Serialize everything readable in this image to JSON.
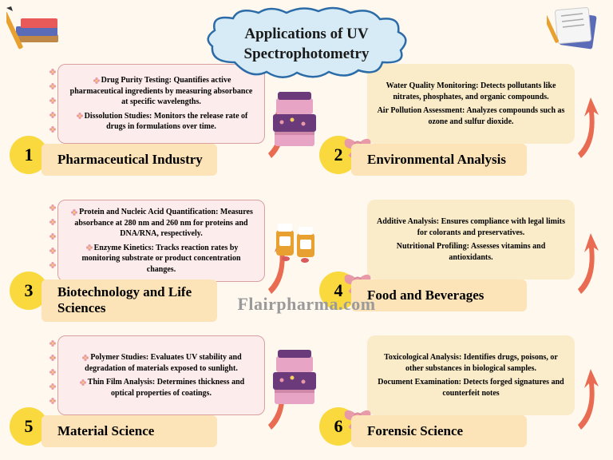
{
  "colors": {
    "background": "#fef8ee",
    "cloud_fill": "#d6ebf5",
    "cloud_stroke": "#2b6ca8",
    "circle_fill": "#f9d93e",
    "label_fill": "#fde4b8",
    "desc_fill_left": "#fdecec",
    "desc_stroke_left": "#d9a0a0",
    "desc_fill_right": "#faecc9",
    "arrow_fill": "#e96b52",
    "bow_fill": "#e99aa8",
    "watermark_color": "#9a9a9a",
    "text_dark": "#1a1a1a",
    "flower_pink": "#e99aa8",
    "flower_center": "#f5d060",
    "book_purple": "#6b3a7a",
    "book_pink": "#e8a4c4",
    "paper_blue": "#5a6bb8",
    "paper_white": "#f5f5f5",
    "pencil": "#e8a030",
    "pill_bottle": "#e8a030",
    "pill_cap": "#ffffff"
  },
  "title": "Applications of UV Spectrophotometry",
  "watermark": "Flairpharma.com",
  "sections": [
    {
      "num": "1",
      "label": "Pharmaceutical Industry",
      "side": "left",
      "desc": [
        "Drug Purity Testing: Quantifies active pharmaceutical ingredients by measuring absorbance at specific wavelengths.",
        "Dissolution Studies: Monitors the release rate of drugs in formulations over time."
      ]
    },
    {
      "num": "2",
      "label": "Environmental Analysis",
      "side": "right",
      "desc": [
        "Water Quality Monitoring: Detects pollutants like nitrates, phosphates, and organic compounds.",
        "Air Pollution Assessment: Analyzes compounds such as ozone and sulfur dioxide."
      ]
    },
    {
      "num": "3",
      "label": "Biotechnology and Life Sciences",
      "side": "left",
      "desc": [
        "Protein and Nucleic Acid Quantification: Measures absorbance at 280 nm and 260 nm for proteins and DNA/RNA, respectively.",
        "Enzyme Kinetics: Tracks reaction rates by monitoring substrate or product concentration changes."
      ]
    },
    {
      "num": "4",
      "label": "Food and Beverages",
      "side": "right",
      "desc": [
        "Additive Analysis: Ensures compliance with legal limits for colorants and preservatives.",
        "Nutritional Profiling: Assesses vitamins and antioxidants."
      ]
    },
    {
      "num": "5",
      "label": "Material Science",
      "side": "left",
      "desc": [
        "Polymer Studies: Evaluates UV stability and degradation of materials exposed to sunlight.",
        "Thin Film Analysis: Determines thickness and optical properties of coatings."
      ]
    },
    {
      "num": "6",
      "label": "Forensic Science",
      "side": "right",
      "desc": [
        "Toxicological Analysis: Identifies drugs, poisons, or other substances in biological samples.",
        "Document Examination: Detects forged signatures and counterfeit notes"
      ]
    }
  ]
}
